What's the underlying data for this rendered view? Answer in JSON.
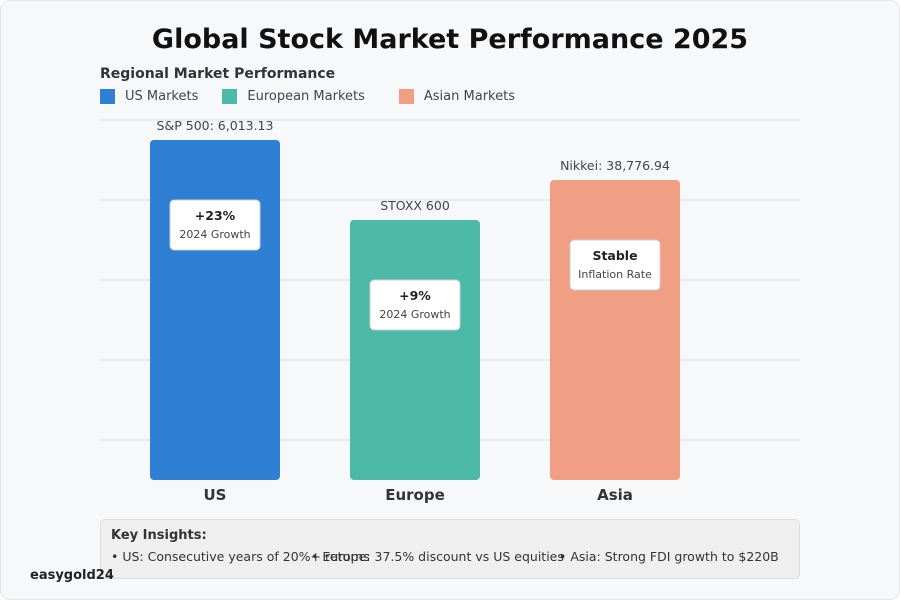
{
  "title": "Global Stock Market Performance 2025",
  "chart_data": {
    "type": "bar",
    "subtitle": "Regional Market Performance",
    "categories": [
      "US",
      "Europe",
      "Asia"
    ],
    "values": [
      85,
      65,
      75
    ],
    "ylim": [
      0,
      90
    ],
    "grid": true,
    "legend_position": "top-left",
    "series": [
      {
        "name": "US Markets",
        "color": "#2f80d4"
      },
      {
        "name": "European Markets",
        "color": "#4dbaa9"
      },
      {
        "name": "Asian Markets",
        "color": "#f09e84"
      }
    ],
    "top_labels": [
      "S&P 500: 6,013.13",
      "STOXX 600",
      "Nikkei: 38,776.94"
    ],
    "callouts": [
      {
        "value": "+23%",
        "label": "2024 Growth"
      },
      {
        "value": "+9%",
        "label": "2024 Growth"
      },
      {
        "value": "Stable",
        "label": "Inflation Rate"
      }
    ]
  },
  "insights": {
    "heading": "Key Insights:",
    "items": [
      "• US: Consecutive years of 20%+ returns",
      "• Europe: 37.5% discount vs US equities",
      "• Asia: Strong FDI growth to $220B"
    ]
  },
  "watermark": "easygold24"
}
